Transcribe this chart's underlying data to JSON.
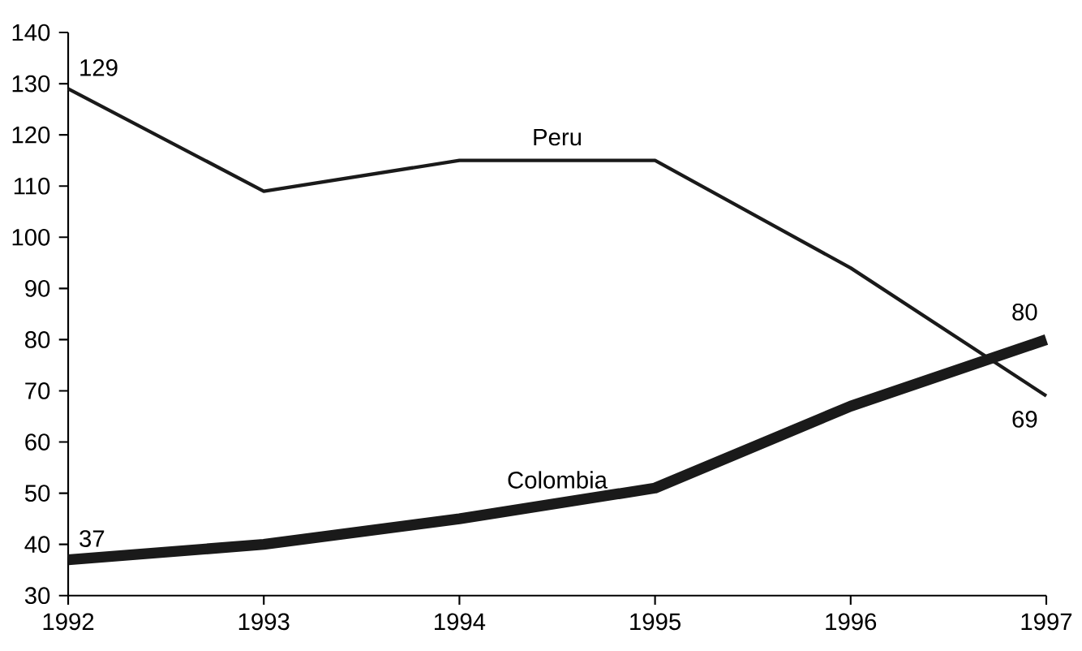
{
  "chart_data": {
    "type": "line",
    "x": [
      1992,
      1993,
      1994,
      1995,
      1996,
      1997
    ],
    "series": [
      {
        "name": "Peru",
        "color": "#1a1a1a",
        "values": [
          129,
          109,
          115,
          115,
          94,
          69
        ],
        "value_labels": [
          "129",
          null,
          null,
          null,
          null,
          "69"
        ]
      },
      {
        "name": "Colombia",
        "color": "#1a1a1a",
        "values": [
          37,
          40,
          45,
          51,
          67,
          80
        ],
        "value_labels": [
          "37",
          null,
          null,
          null,
          null,
          "80"
        ]
      }
    ],
    "xlim": [
      1992,
      1997
    ],
    "xticks": [
      1992,
      1993,
      1994,
      1995,
      1996,
      1997
    ],
    "ylim": [
      30,
      140
    ],
    "yticks": [
      30,
      40,
      50,
      60,
      70,
      80,
      90,
      100,
      110,
      120,
      130,
      140
    ],
    "grid": false,
    "legend": false,
    "marker": "none",
    "line_style": "solid"
  }
}
